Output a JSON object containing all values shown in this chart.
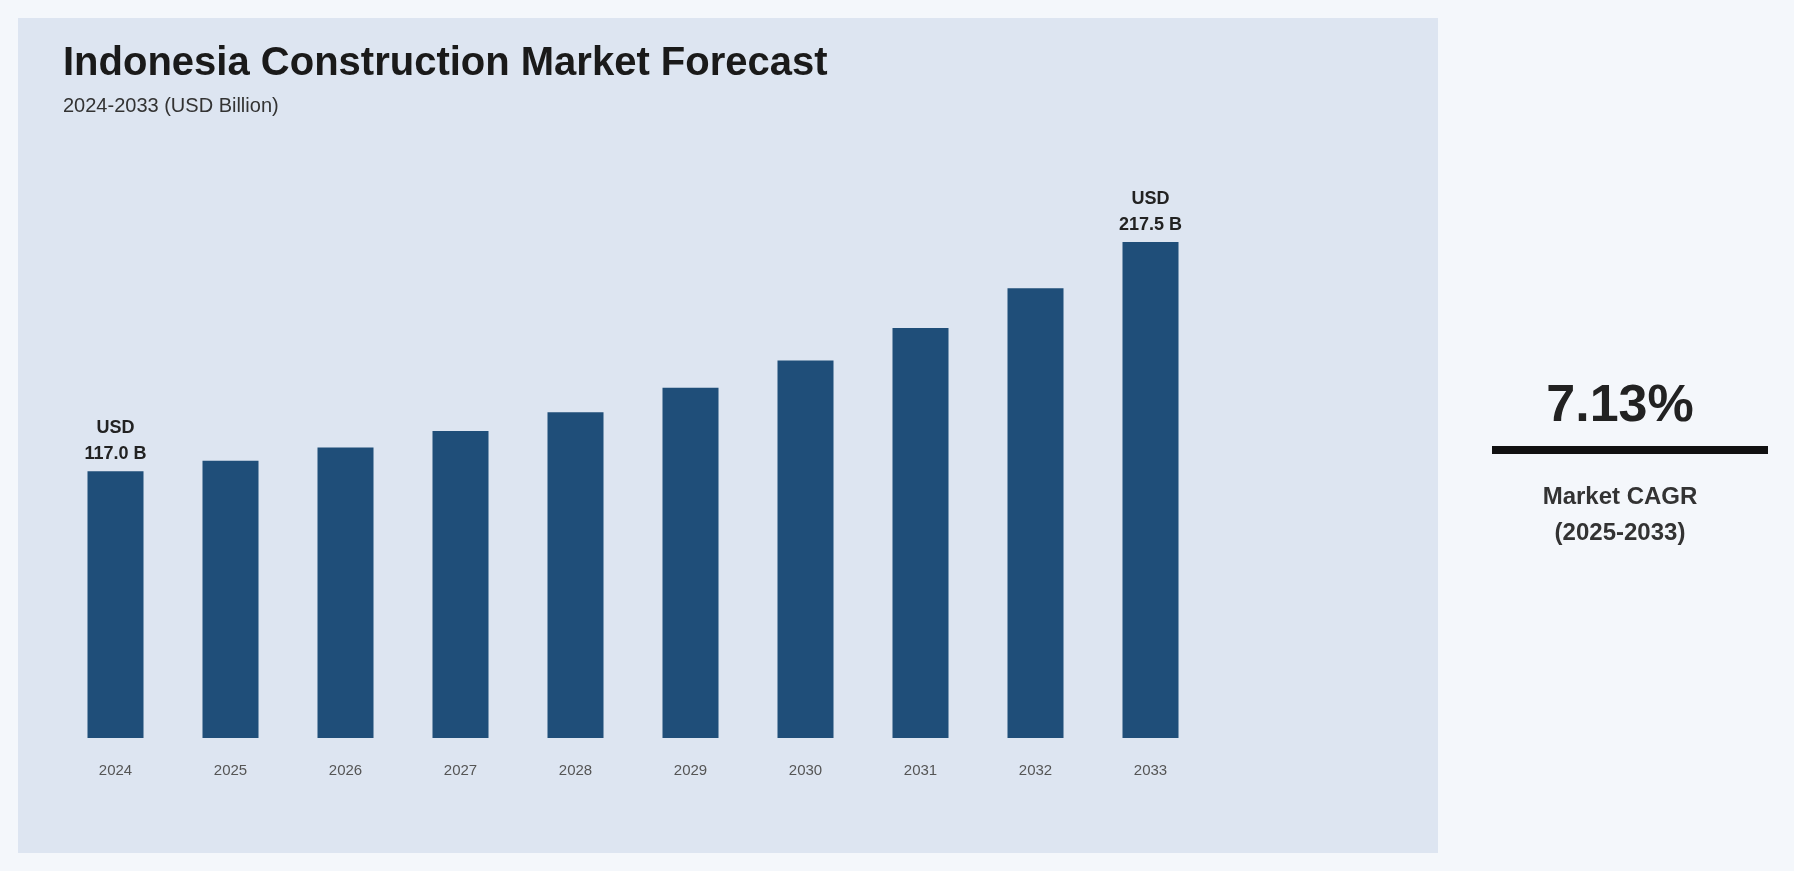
{
  "chart_data": {
    "type": "bar",
    "title": "Indonesia Construction Market Forecast",
    "subtitle": "2024-2033 (USD Billion)",
    "categories": [
      "2024",
      "2025",
      "2026",
      "2027",
      "2028",
      "2029",
      "2030",
      "2031",
      "2032",
      "2033"
    ],
    "values": [
      117.0,
      121.6,
      127.4,
      134.7,
      142.9,
      153.6,
      165.6,
      179.8,
      197.3,
      217.5
    ],
    "value_labels": [
      "USD\n117.0 B",
      null,
      null,
      null,
      null,
      null,
      null,
      null,
      null,
      "USD\n217.5 B"
    ],
    "color": "#1f4e79",
    "annotations": [
      "7.13%",
      "Market CAGR (2025-2033)"
    ]
  }
}
